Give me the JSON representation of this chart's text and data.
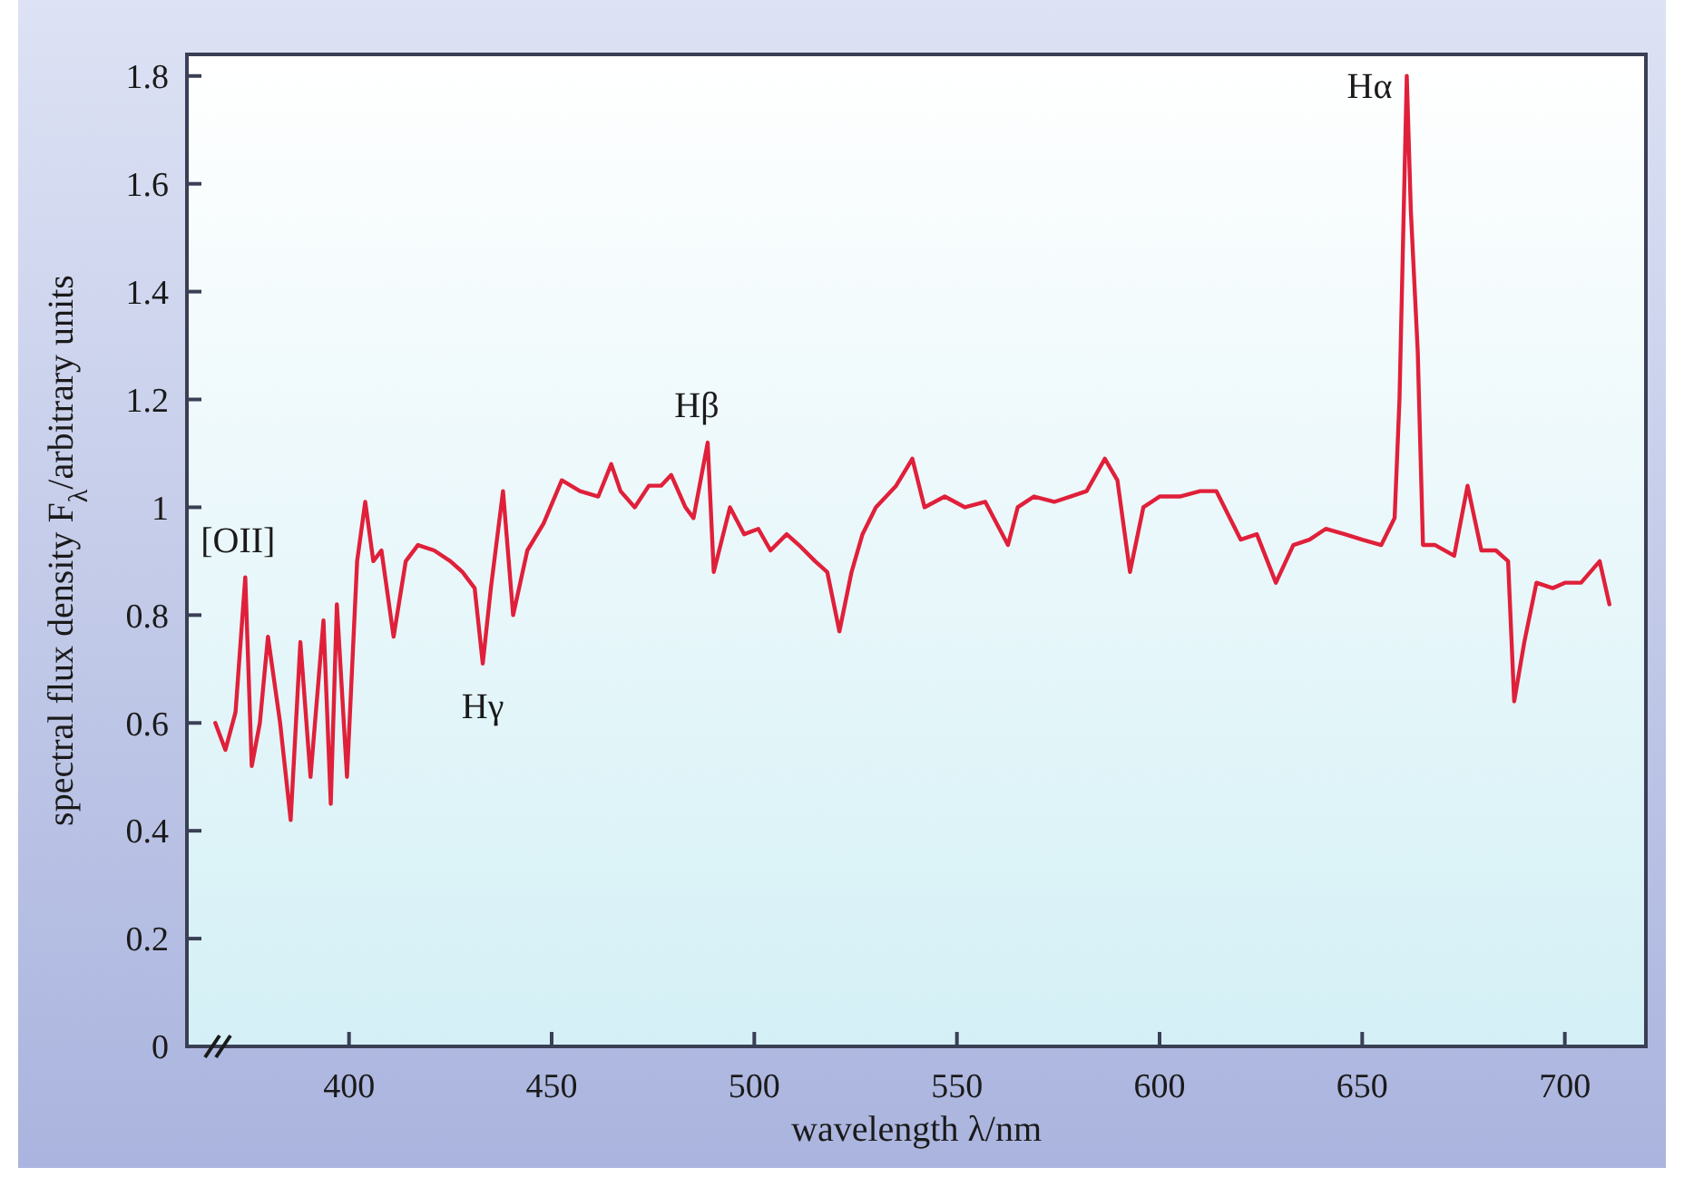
{
  "chart_data": {
    "type": "line",
    "xlabel": "wavelength λ/nm",
    "ylabel": "spectral flux density F$_{λ}$/arbitrary units",
    "xlim": [
      360,
      720
    ],
    "xticks": [
      400,
      450,
      500,
      550,
      600,
      650,
      700
    ],
    "ylim": [
      0,
      1.84
    ],
    "yticks": [
      0,
      0.2,
      0.4,
      0.6,
      0.8,
      1,
      1.2,
      1.4,
      1.6,
      1.8
    ],
    "marker": "none",
    "line_style": "solid",
    "series": [
      {
        "color": "#e0203a",
        "x": [
          367,
          369.5,
          372,
          374.4,
          376,
          378,
          380,
          383,
          385.6,
          388,
          390.5,
          393.7,
          395.5,
          397,
          399.5,
          402,
          404,
          406,
          408,
          411,
          414,
          417,
          421,
          425,
          428,
          431,
          433,
          435,
          438,
          440.5,
          444,
          448,
          452.5,
          457,
          461.5,
          464.7,
          467,
          470.5,
          474,
          477,
          479.5,
          483,
          485,
          488.5,
          490,
          494,
          497.5,
          501,
          504,
          508,
          511,
          515,
          518,
          521,
          524,
          526.7,
          530,
          535,
          539,
          542,
          547,
          552,
          557,
          562.6,
          565,
          569,
          574,
          578,
          582,
          586.5,
          589.6,
          592.7,
          596,
          600,
          605,
          610,
          614,
          620,
          624,
          628.7,
          633,
          637,
          641,
          645.7,
          650,
          654.7,
          658,
          659.2,
          661,
          662,
          663.7,
          665,
          668,
          672.7,
          676,
          679.4,
          683,
          686,
          687.5,
          690,
          693,
          697,
          700,
          704,
          708.6,
          711
        ],
        "values": [
          0.6,
          0.55,
          0.62,
          0.87,
          0.52,
          0.6,
          0.76,
          0.6,
          0.42,
          0.75,
          0.5,
          0.79,
          0.45,
          0.82,
          0.5,
          0.9,
          1.01,
          0.9,
          0.92,
          0.76,
          0.9,
          0.93,
          0.92,
          0.9,
          0.88,
          0.85,
          0.71,
          0.85,
          1.03,
          0.8,
          0.92,
          0.97,
          1.05,
          1.03,
          1.02,
          1.08,
          1.03,
          1.0,
          1.04,
          1.04,
          1.06,
          1.0,
          0.98,
          1.12,
          0.88,
          1.0,
          0.95,
          0.96,
          0.92,
          0.95,
          0.93,
          0.9,
          0.88,
          0.77,
          0.88,
          0.95,
          1.0,
          1.04,
          1.09,
          1.0,
          1.02,
          1.0,
          1.01,
          0.93,
          1.0,
          1.02,
          1.01,
          1.02,
          1.03,
          1.09,
          1.05,
          0.88,
          1.0,
          1.02,
          1.02,
          1.03,
          1.03,
          0.94,
          0.95,
          0.86,
          0.93,
          0.94,
          0.96,
          0.95,
          0.94,
          0.93,
          0.98,
          1.2,
          1.8,
          1.55,
          1.29,
          0.93,
          0.93,
          0.91,
          1.04,
          0.92,
          0.92,
          0.9,
          0.64,
          0.75,
          0.86,
          0.85,
          0.86,
          0.86,
          0.9,
          0.82
        ]
      }
    ],
    "annotations": [
      {
        "text": "[OII]",
        "x": 374.4,
        "y": 0.87
      },
      {
        "text": "Hγ",
        "x": 433,
        "y": 0.71
      },
      {
        "text": "Hβ",
        "x": 488.5,
        "y": 1.12
      },
      {
        "text": "Hα",
        "x": 661,
        "y": 1.8
      }
    ]
  }
}
